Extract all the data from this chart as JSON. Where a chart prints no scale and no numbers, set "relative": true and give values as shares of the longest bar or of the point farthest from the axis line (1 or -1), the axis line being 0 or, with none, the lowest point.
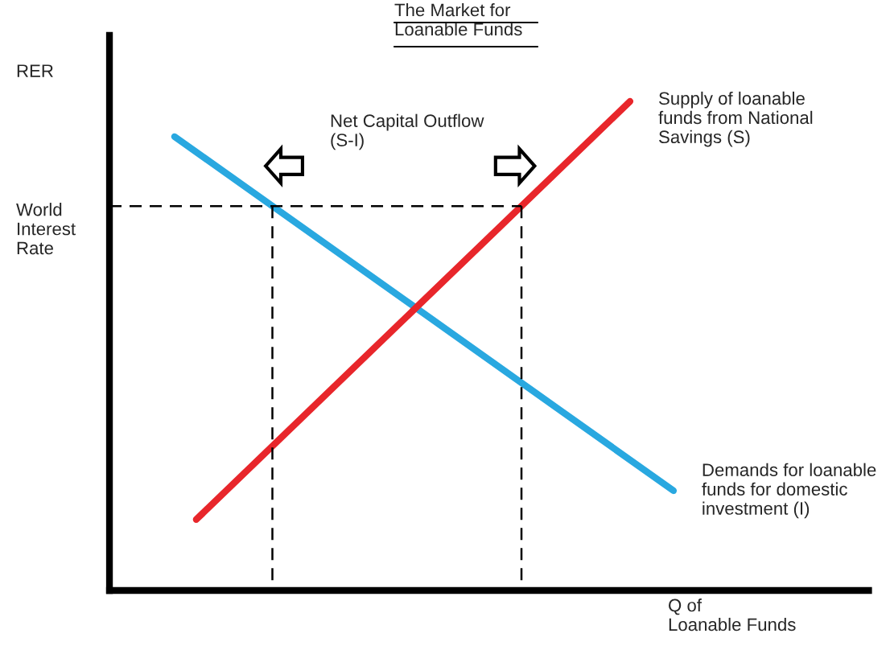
{
  "chart_data": {
    "type": "line",
    "relative": true,
    "title": "The Market for\nLoanable Funds",
    "xlabel": "Q of\nLoanable Funds",
    "ylabel": "RER",
    "legend": false,
    "marker": "none",
    "categories": [
      null,
      null,
      null,
      null,
      null,
      null,
      null,
      null,
      null,
      null,
      null,
      null,
      null,
      null,
      null,
      null,
      null,
      null,
      null,
      null,
      null,
      null,
      null,
      null,
      null,
      null,
      null,
      null,
      null,
      null,
      null,
      null,
      null,
      null,
      null,
      null
    ],
    "series": [
      {
        "name": "Demands for loanable\nfunds for domestic\ninvestment (I)",
        "color": "#29a8e0",
        "values": [
          null,
          null,
          null,
          0.928,
          null,
          null,
          null,
          null,
          null,
          null,
          null,
          null,
          null,
          null,
          null,
          null,
          null,
          null,
          null,
          null,
          null,
          null,
          null,
          null,
          null,
          null,
          0.204,
          null,
          null,
          null,
          null,
          null,
          null,
          null,
          null,
          null
        ]
      },
      {
        "name": "Supply of loanable\nfunds from National\nSavings (S)",
        "color": "#e8262b",
        "values": [
          null,
          null,
          null,
          null,
          0.145,
          null,
          null,
          null,
          null,
          null,
          null,
          null,
          null,
          null,
          null,
          null,
          null,
          null,
          null,
          null,
          null,
          null,
          null,
          null,
          1.0,
          null,
          null,
          null,
          null,
          null,
          null,
          null,
          null,
          null,
          null,
          null
        ]
      }
    ],
    "ref_lines": [
      {
        "axis": "y",
        "value": 0.786,
        "label": "World\nInterest\nRate",
        "color": "#000000",
        "line_style": "dashed"
      }
    ],
    "annotations": [
      "Net Capital Outflow\n(S-I)"
    ]
  }
}
